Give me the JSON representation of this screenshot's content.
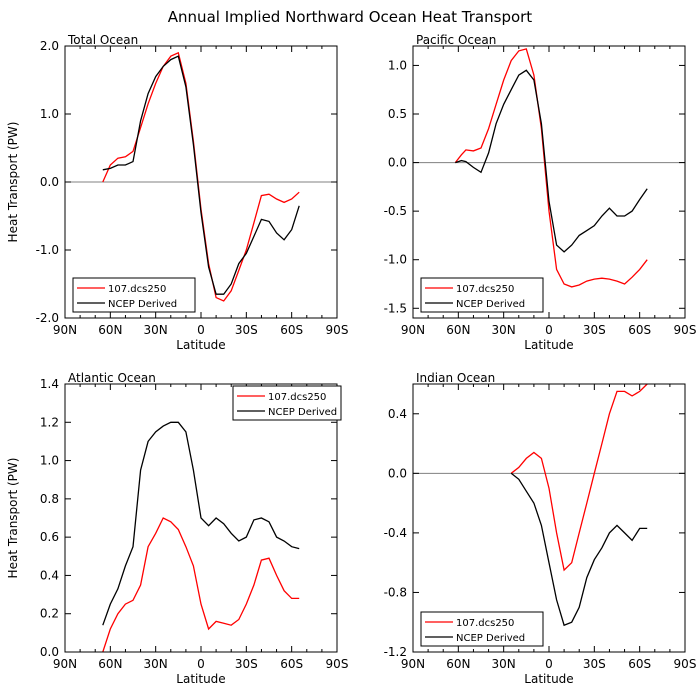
{
  "title": "Annual Implied Northward Ocean Heat Transport",
  "colors": {
    "model": "#ff0000",
    "observed": "#000000",
    "zero_line": "#808080",
    "axis": "#000000"
  },
  "chart_data": [
    {
      "type": "line",
      "title": "Total Ocean",
      "xlabel": "Latitude",
      "ylabel": "Heat Transport (PW)",
      "xlim": [
        -90,
        90
      ],
      "ylim": [
        -2.0,
        2.0
      ],
      "x_ticks": [
        -90,
        -60,
        -30,
        0,
        30,
        60,
        90
      ],
      "x_tick_labels": [
        "90N",
        "60N",
        "30N",
        "0",
        "30S",
        "60S",
        "90S"
      ],
      "y_ticks": [
        -2.0,
        -1.0,
        0.0,
        1.0,
        2.0
      ],
      "y_tick_labels": [
        "-2.0",
        "-1.0",
        "0.0",
        "1.0",
        "2.0"
      ],
      "zero_line": true,
      "legend_position": "bottom-left",
      "series": [
        {
          "name": "107.dcs250",
          "color": "#ff0000",
          "x": [
            -65,
            -60,
            -55,
            -50,
            -45,
            -40,
            -35,
            -30,
            -25,
            -20,
            -15,
            -10,
            -5,
            0,
            5,
            10,
            15,
            20,
            25,
            30,
            35,
            40,
            45,
            50,
            55,
            60,
            65
          ],
          "y": [
            0.0,
            0.25,
            0.35,
            0.37,
            0.45,
            0.8,
            1.15,
            1.45,
            1.7,
            1.85,
            1.9,
            1.45,
            0.6,
            -0.4,
            -1.2,
            -1.7,
            -1.75,
            -1.6,
            -1.3,
            -1.0,
            -0.6,
            -0.2,
            -0.18,
            -0.25,
            -0.3,
            -0.25,
            -0.15
          ]
        },
        {
          "name": "NCEP Derived",
          "color": "#000000",
          "x": [
            -65,
            -60,
            -55,
            -50,
            -45,
            -40,
            -35,
            -30,
            -25,
            -20,
            -15,
            -10,
            -5,
            0,
            5,
            10,
            15,
            20,
            25,
            30,
            35,
            40,
            45,
            50,
            55,
            60,
            65
          ],
          "y": [
            0.18,
            0.2,
            0.25,
            0.25,
            0.3,
            0.9,
            1.3,
            1.55,
            1.7,
            1.8,
            1.85,
            1.4,
            0.55,
            -0.45,
            -1.25,
            -1.65,
            -1.65,
            -1.5,
            -1.2,
            -1.05,
            -0.8,
            -0.55,
            -0.58,
            -0.75,
            -0.85,
            -0.7,
            -0.35
          ]
        }
      ]
    },
    {
      "type": "line",
      "title": "Pacific Ocean",
      "xlabel": "Latitude",
      "ylabel": "",
      "xlim": [
        -90,
        90
      ],
      "ylim": [
        -1.6,
        1.2
      ],
      "x_ticks": [
        -90,
        -60,
        -30,
        0,
        30,
        60,
        90
      ],
      "x_tick_labels": [
        "90N",
        "60N",
        "30N",
        "0",
        "30S",
        "60S",
        "90S"
      ],
      "y_ticks": [
        -1.5,
        -1.0,
        -0.5,
        0.0,
        0.5,
        1.0
      ],
      "y_tick_labels": [
        "-1.5",
        "-1.0",
        "-0.5",
        "0.0",
        "0.5",
        "1.0"
      ],
      "zero_line": true,
      "legend_position": "bottom-left",
      "series": [
        {
          "name": "107.dcs250",
          "color": "#ff0000",
          "x": [
            -62,
            -58,
            -55,
            -50,
            -45,
            -40,
            -35,
            -30,
            -25,
            -20,
            -15,
            -10,
            -5,
            0,
            5,
            10,
            15,
            20,
            25,
            30,
            35,
            40,
            45,
            50,
            55,
            60,
            65
          ],
          "y": [
            0.0,
            0.08,
            0.13,
            0.12,
            0.15,
            0.35,
            0.6,
            0.85,
            1.05,
            1.15,
            1.17,
            0.9,
            0.35,
            -0.5,
            -1.1,
            -1.25,
            -1.28,
            -1.26,
            -1.22,
            -1.2,
            -1.19,
            -1.2,
            -1.22,
            -1.25,
            -1.18,
            -1.1,
            -1.0
          ]
        },
        {
          "name": "NCEP Derived",
          "color": "#000000",
          "x": [
            -62,
            -58,
            -55,
            -50,
            -45,
            -40,
            -35,
            -30,
            -25,
            -20,
            -15,
            -10,
            -5,
            0,
            5,
            10,
            15,
            20,
            25,
            30,
            35,
            40,
            45,
            50,
            55,
            60,
            65
          ],
          "y": [
            0.0,
            0.02,
            0.01,
            -0.05,
            -0.1,
            0.1,
            0.4,
            0.6,
            0.75,
            0.9,
            0.95,
            0.85,
            0.4,
            -0.4,
            -0.85,
            -0.92,
            -0.85,
            -0.75,
            -0.7,
            -0.65,
            -0.55,
            -0.47,
            -0.55,
            -0.55,
            -0.5,
            -0.38,
            -0.27
          ]
        }
      ]
    },
    {
      "type": "line",
      "title": "Atlantic Ocean",
      "xlabel": "Latitude",
      "ylabel": "Heat Transport (PW)",
      "xlim": [
        -90,
        90
      ],
      "ylim": [
        0.0,
        1.4
      ],
      "x_ticks": [
        -90,
        -60,
        -30,
        0,
        30,
        60,
        90
      ],
      "x_tick_labels": [
        "90N",
        "60N",
        "30N",
        "0",
        "30S",
        "60S",
        "90S"
      ],
      "y_ticks": [
        0.0,
        0.2,
        0.4,
        0.6,
        0.8,
        1.0,
        1.2,
        1.4
      ],
      "y_tick_labels": [
        "0.0",
        "0.2",
        "0.4",
        "0.6",
        "0.8",
        "1.0",
        "1.2",
        "1.4"
      ],
      "zero_line": false,
      "legend_position": "top-right",
      "series": [
        {
          "name": "107.dcs250",
          "color": "#ff0000",
          "x": [
            -65,
            -60,
            -55,
            -50,
            -45,
            -40,
            -35,
            -30,
            -25,
            -20,
            -15,
            -10,
            -5,
            0,
            5,
            10,
            15,
            20,
            25,
            30,
            35,
            40,
            45,
            50,
            55,
            60,
            65
          ],
          "y": [
            0.0,
            0.12,
            0.2,
            0.25,
            0.27,
            0.35,
            0.55,
            0.62,
            0.7,
            0.68,
            0.64,
            0.55,
            0.45,
            0.25,
            0.12,
            0.16,
            0.15,
            0.14,
            0.17,
            0.25,
            0.35,
            0.48,
            0.49,
            0.4,
            0.32,
            0.28,
            0.28
          ]
        },
        {
          "name": "NCEP Derived",
          "color": "#000000",
          "x": [
            -65,
            -60,
            -55,
            -50,
            -45,
            -40,
            -35,
            -30,
            -25,
            -20,
            -15,
            -10,
            -5,
            0,
            5,
            10,
            15,
            20,
            25,
            30,
            35,
            40,
            45,
            50,
            55,
            60,
            65
          ],
          "y": [
            0.14,
            0.25,
            0.33,
            0.45,
            0.55,
            0.95,
            1.1,
            1.15,
            1.18,
            1.2,
            1.2,
            1.15,
            0.95,
            0.7,
            0.66,
            0.7,
            0.67,
            0.62,
            0.58,
            0.6,
            0.69,
            0.7,
            0.68,
            0.6,
            0.58,
            0.55,
            0.54
          ]
        }
      ]
    },
    {
      "type": "line",
      "title": "Indian Ocean",
      "xlabel": "Latitude",
      "ylabel": "",
      "xlim": [
        -90,
        90
      ],
      "ylim": [
        -1.2,
        0.6
      ],
      "x_ticks": [
        -90,
        -60,
        -30,
        0,
        30,
        60,
        90
      ],
      "x_tick_labels": [
        "90N",
        "60N",
        "30N",
        "0",
        "30S",
        "60S",
        "90S"
      ],
      "y_ticks": [
        -1.2,
        -0.8,
        -0.4,
        0.0,
        0.4
      ],
      "y_tick_labels": [
        "-1.2",
        "-0.8",
        "-0.4",
        "0.0",
        "0.4"
      ],
      "zero_line": true,
      "legend_position": "bottom-left",
      "series": [
        {
          "name": "107.dcs250",
          "color": "#ff0000",
          "x": [
            -25,
            -20,
            -15,
            -10,
            -5,
            0,
            5,
            10,
            15,
            20,
            25,
            30,
            35,
            40,
            45,
            50,
            55,
            60,
            65
          ],
          "y": [
            0.0,
            0.04,
            0.1,
            0.14,
            0.1,
            -0.1,
            -0.4,
            -0.65,
            -0.6,
            -0.4,
            -0.2,
            0.0,
            0.2,
            0.4,
            0.55,
            0.55,
            0.52,
            0.55,
            0.6
          ]
        },
        {
          "name": "NCEP Derived",
          "color": "#000000",
          "x": [
            -25,
            -20,
            -15,
            -10,
            -5,
            0,
            5,
            10,
            15,
            20,
            25,
            30,
            35,
            40,
            45,
            50,
            55,
            60,
            65
          ],
          "y": [
            0.0,
            -0.04,
            -0.12,
            -0.2,
            -0.35,
            -0.6,
            -0.85,
            -1.02,
            -1.0,
            -0.9,
            -0.7,
            -0.58,
            -0.5,
            -0.4,
            -0.35,
            -0.4,
            -0.45,
            -0.37,
            -0.37
          ]
        }
      ]
    }
  ]
}
